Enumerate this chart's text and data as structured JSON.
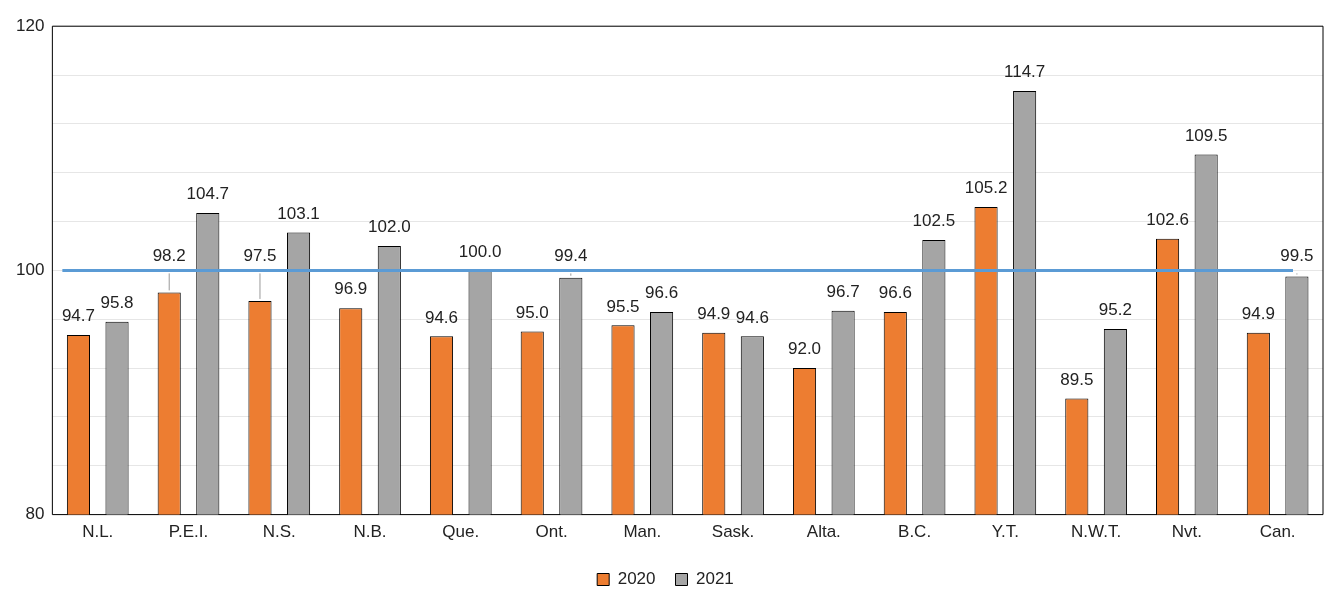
{
  "chart_data": {
    "type": "bar",
    "categories": [
      "N.L.",
      "P.E.I.",
      "N.S.",
      "N.B.",
      "Que.",
      "Ont.",
      "Man.",
      "Sask.",
      "Alta.",
      "B.C.",
      "Y.T.",
      "N.W.T.",
      "Nvt.",
      "Can."
    ],
    "series": [
      {
        "name": "2020",
        "color": "#ed7d31",
        "values": [
          94.7,
          98.2,
          97.5,
          96.9,
          94.6,
          95.0,
          95.5,
          94.9,
          92.0,
          96.6,
          105.2,
          89.5,
          102.6,
          94.9
        ],
        "value_labels": [
          "94.7",
          "98.2",
          "97.5",
          "96.9",
          "94.6",
          "95.0",
          "95.5",
          "94.9",
          "92.0",
          "96.6",
          "105.2",
          "89.5",
          "102.6",
          "94.9"
        ]
      },
      {
        "name": "2021",
        "color": "#a5a5a5",
        "values": [
          95.8,
          104.7,
          103.1,
          102.0,
          100.0,
          99.4,
          96.6,
          94.6,
          96.7,
          102.5,
          114.7,
          95.2,
          109.5,
          99.5
        ],
        "value_labels": [
          "95.8",
          "104.7",
          "103.1",
          "102.0",
          "100.0",
          "99.4",
          "96.6",
          "94.6",
          "96.7",
          "102.5",
          "114.7",
          "95.2",
          "109.5",
          "99.5"
        ]
      }
    ],
    "ylim": [
      80,
      120
    ],
    "yticks": [
      80,
      {
        "value": 84,
        "label": null
      },
      {
        "value": 88,
        "label": null
      },
      {
        "value": 92,
        "label": null
      },
      {
        "value": 96,
        "label": null
      },
      100,
      {
        "value": 104,
        "label": null
      },
      {
        "value": 108,
        "label": null
      },
      {
        "value": 112,
        "label": null
      },
      {
        "value": 116,
        "label": null
      },
      120
    ],
    "grid": "y",
    "legend": "bottom",
    "ref_lines": [
      {
        "axis": "y",
        "value": 100,
        "color": "#5b9bd5"
      }
    ]
  }
}
